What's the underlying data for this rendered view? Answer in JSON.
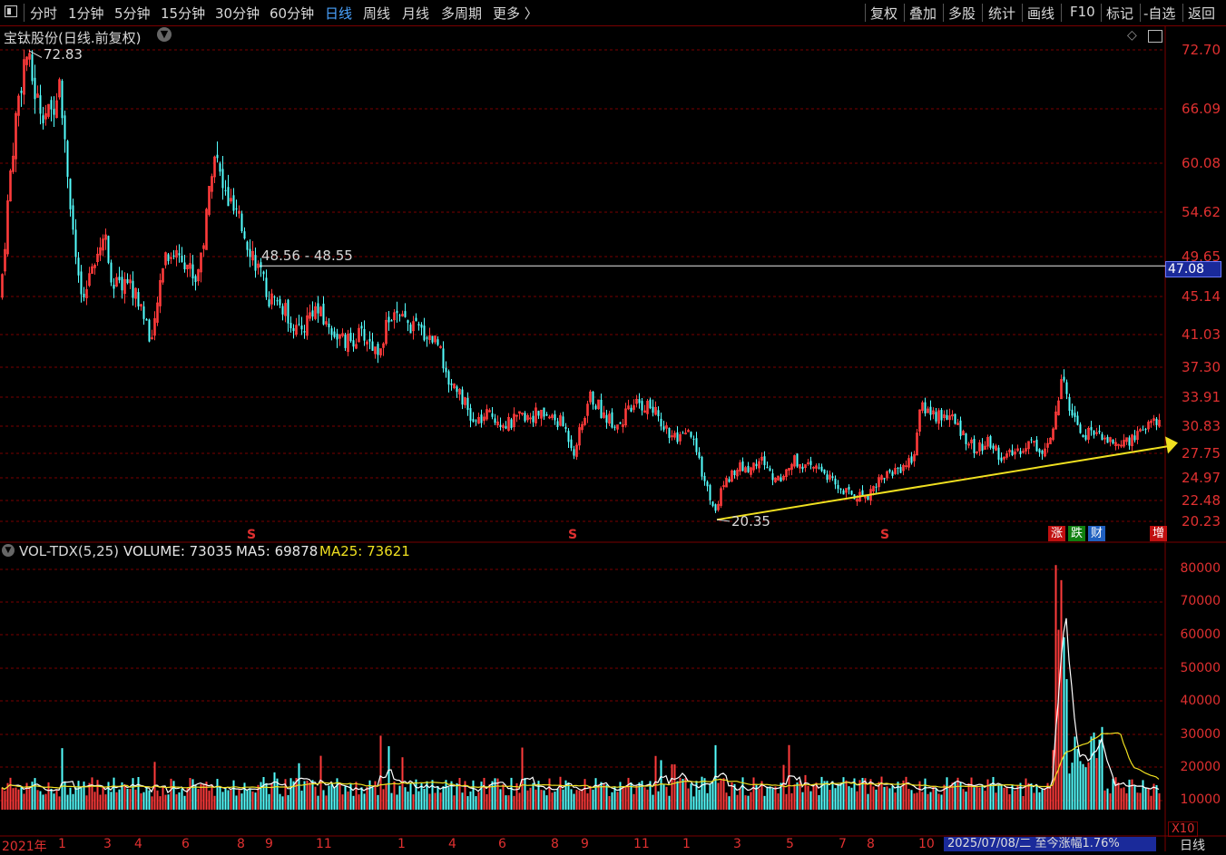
{
  "toolbar": {
    "periods": [
      "分时",
      "1分钟",
      "5分钟",
      "15分钟",
      "30分钟",
      "60分钟",
      "日线",
      "周线",
      "月线",
      "多周期",
      "更多 〉"
    ],
    "active_period": "日线",
    "right_tools": [
      "复权",
      "叠加",
      "多股",
      "统计",
      "画线",
      "F10",
      "标记",
      "-自选",
      "返回"
    ]
  },
  "main_panel": {
    "title": "宝钛股份(日线.前复权)",
    "price_axis": [
      "72.70",
      "66.09",
      "60.08",
      "54.62",
      "49.65",
      "45.14",
      "41.03",
      "37.30",
      "33.91",
      "30.83",
      "27.75",
      "24.97",
      "22.48",
      "20.23"
    ],
    "current_price": "47.08",
    "annotations": {
      "high": "72.83",
      "low": "20.35",
      "hline": "48.56 - 48.55"
    },
    "s_marks": [
      "S",
      "S",
      "S"
    ],
    "badges": [
      {
        "text": "涨",
        "color": "#c01010"
      },
      {
        "text": "跌",
        "color": "#108010"
      },
      {
        "text": "财",
        "color": "#2060c0"
      }
    ],
    "badge_right": "增"
  },
  "volume_panel": {
    "indicator": "VOL-TDX(5,25)",
    "volume_label": "VOLUME: 73035",
    "ma5_label": "MA5: 69878",
    "ma25_label": "MA25: 73621",
    "axis": [
      "80000",
      "70000",
      "60000",
      "50000",
      "40000",
      "30000",
      "20000",
      "10000"
    ],
    "unit": "X10"
  },
  "date_axis": {
    "labels": [
      "2021年",
      "1",
      "3",
      "4",
      "6",
      "8",
      "9",
      "11",
      "1",
      "4",
      "6",
      "8",
      "9",
      "11",
      "1",
      "3",
      "5",
      "7",
      "8",
      "10"
    ],
    "status": "2025/07/08/二  至今涨幅1.76%",
    "period_tag": "日线"
  },
  "colors": {
    "up": "#ff3b3b",
    "down": "#54ffff",
    "grid": "#7a0000",
    "ma5": "#ffffff",
    "ma25": "#f0e020",
    "trend": "#f0e020"
  }
}
